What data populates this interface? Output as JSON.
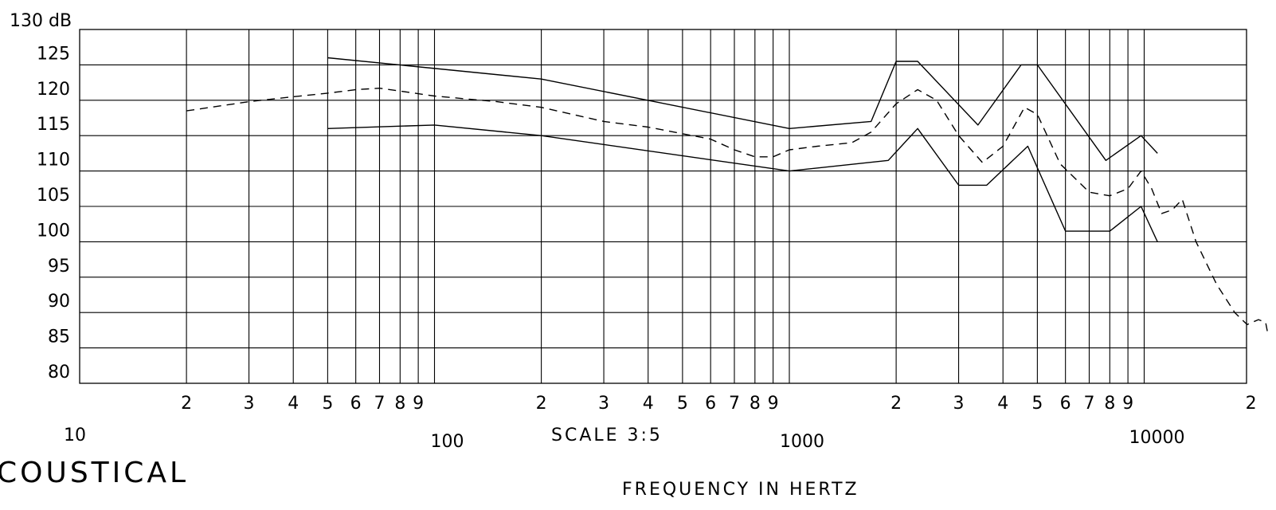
{
  "chart_data": {
    "type": "line",
    "x_scale": "log",
    "x_unit_label": "FREQUENCY IN HERTZ",
    "scale_note": "SCALE  3:5",
    "side_text": "COUSTICAL",
    "ylim": [
      80,
      130
    ],
    "xlim": [
      10,
      20000
    ],
    "y_ticks": [
      80,
      85,
      90,
      95,
      100,
      105,
      110,
      115,
      120,
      125
    ],
    "y_tick_labels": [
      "80",
      "85",
      "90",
      "95",
      "100",
      "105",
      "110",
      "115",
      "120",
      "125"
    ],
    "y_top_label": "130 dB",
    "x_decade_labels": [
      {
        "value": 10,
        "label": "10"
      },
      {
        "value": 100,
        "label": "100"
      },
      {
        "value": 1000,
        "label": "1000"
      },
      {
        "value": 10000,
        "label": "10000"
      }
    ],
    "x_minor_ticks": [
      {
        "value": 20,
        "label": "2"
      },
      {
        "value": 30,
        "label": "3"
      },
      {
        "value": 40,
        "label": "4"
      },
      {
        "value": 50,
        "label": "5"
      },
      {
        "value": 60,
        "label": "6"
      },
      {
        "value": 70,
        "label": "7"
      },
      {
        "value": 80,
        "label": "8"
      },
      {
        "value": 90,
        "label": "9"
      },
      {
        "value": 200,
        "label": "2"
      },
      {
        "value": 300,
        "label": "3"
      },
      {
        "value": 400,
        "label": "4"
      },
      {
        "value": 500,
        "label": "5"
      },
      {
        "value": 600,
        "label": "6"
      },
      {
        "value": 700,
        "label": "7"
      },
      {
        "value": 800,
        "label": "8"
      },
      {
        "value": 900,
        "label": "9"
      },
      {
        "value": 2000,
        "label": "2"
      },
      {
        "value": 3000,
        "label": "3"
      },
      {
        "value": 4000,
        "label": "4"
      },
      {
        "value": 5000,
        "label": "5"
      },
      {
        "value": 6000,
        "label": "6"
      },
      {
        "value": 7000,
        "label": "7"
      },
      {
        "value": 8000,
        "label": "8"
      },
      {
        "value": 9000,
        "label": "9"
      },
      {
        "value": 20000,
        "label": "2"
      }
    ],
    "grid": true,
    "series": [
      {
        "style": "solid",
        "points": [
          [
            50,
            126
          ],
          [
            200,
            123
          ],
          [
            1000,
            116
          ],
          [
            1700,
            117
          ],
          [
            2000,
            125.5
          ],
          [
            2300,
            125.5
          ],
          [
            3400,
            116.5
          ],
          [
            4500,
            125
          ],
          [
            5000,
            125
          ],
          [
            7800,
            111.5
          ],
          [
            9800,
            115
          ],
          [
            10900,
            112.5
          ]
        ]
      },
      {
        "style": "dashed",
        "points": [
          [
            20,
            118.5
          ],
          [
            30,
            119.8
          ],
          [
            40,
            120.5
          ],
          [
            50,
            121
          ],
          [
            60,
            121.5
          ],
          [
            70,
            121.7
          ],
          [
            80,
            121.3
          ],
          [
            100,
            120.6
          ],
          [
            150,
            119.8
          ],
          [
            200,
            119
          ],
          [
            300,
            117
          ],
          [
            400,
            116.2
          ],
          [
            600,
            114.5
          ],
          [
            700,
            113
          ],
          [
            800,
            112
          ],
          [
            900,
            112
          ],
          [
            1000,
            113
          ],
          [
            1200,
            113.5
          ],
          [
            1500,
            114
          ],
          [
            1700,
            115.5
          ],
          [
            2000,
            119.5
          ],
          [
            2300,
            121.5
          ],
          [
            2600,
            120
          ],
          [
            3000,
            115
          ],
          [
            3500,
            111.2
          ],
          [
            4000,
            113.5
          ],
          [
            4600,
            119
          ],
          [
            5000,
            118
          ],
          [
            5800,
            111
          ],
          [
            7000,
            107
          ],
          [
            8000,
            106.5
          ],
          [
            9000,
            107.5
          ],
          [
            9800,
            110
          ],
          [
            10500,
            107.5
          ],
          [
            11200,
            104
          ],
          [
            12000,
            104.5
          ],
          [
            12800,
            106
          ],
          [
            14000,
            100
          ],
          [
            16000,
            94
          ],
          [
            18000,
            90
          ],
          [
            19500,
            88.3
          ],
          [
            21000,
            89
          ],
          [
            22000,
            88.6
          ],
          [
            22300,
            87
          ]
        ]
      },
      {
        "style": "solid",
        "points": [
          [
            50,
            116
          ],
          [
            100,
            116.5
          ],
          [
            200,
            115
          ],
          [
            1000,
            110
          ],
          [
            1900,
            111.5
          ],
          [
            2300,
            116
          ],
          [
            3000,
            108
          ],
          [
            3600,
            108
          ],
          [
            4700,
            113.5
          ],
          [
            6000,
            101.5
          ],
          [
            8000,
            101.5
          ],
          [
            9800,
            105
          ],
          [
            10900,
            100
          ]
        ]
      }
    ]
  }
}
